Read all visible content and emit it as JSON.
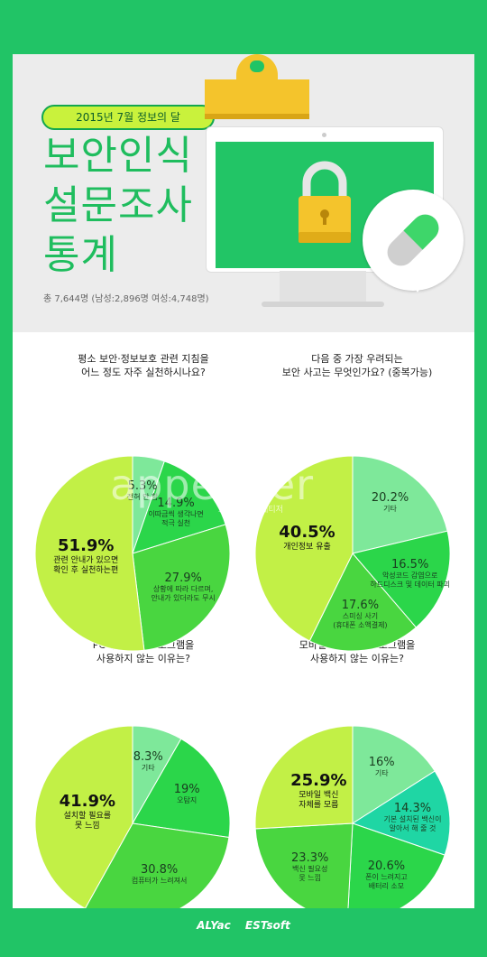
{
  "header": {
    "badge": "2015년 7월 정보의 달",
    "title_line1": "보안인식",
    "title_line2": "설문조사",
    "title_line3": "통계",
    "subtitle": "총 7,644명 (남성:2,896명 여성:4,748명)"
  },
  "watermark": {
    "main": "appetizer",
    "sub": "조선일보 앱 테티저"
  },
  "footer": {
    "brand1": "ALYac",
    "brand2": "ESTsoft"
  },
  "chart_data": [
    {
      "type": "pie",
      "title": "평소 보안·정보보호 관련 지침을 어느 정도 자주 실천하시나요?",
      "title_line1": "평소 보안·정보보호 관련 지침을",
      "title_line2": "어느 정도 자주 실천하시나요?",
      "slices": [
        {
          "value": 5.3,
          "pct": "5.3%",
          "line1": "전혀 안 함",
          "line2": "",
          "color": "#7ee89a"
        },
        {
          "value": 14.9,
          "pct": "14.9%",
          "line1": "이따금씩 생각나면",
          "line2": "적극 실천",
          "color": "#2bd64a"
        },
        {
          "value": 27.9,
          "pct": "27.9%",
          "line1": "상황에 따라 다르며,",
          "line2": "안내가 있더라도 무시",
          "color": "#49d640"
        },
        {
          "value": 51.9,
          "pct": "51.9%",
          "line1": "관련 안내가 있으면",
          "line2": "확인 후 실천하는편",
          "color": "#c2f046"
        }
      ]
    },
    {
      "type": "pie",
      "title": "다음 중 가장 우려되는 보안 사고는 무엇인가요? (중복가능)",
      "title_line1": "다음 중 가장 우려되는",
      "title_line2": "보안 사고는 무엇인가요? (중복가능)",
      "slices": [
        {
          "value": 20.2,
          "pct": "20.2%",
          "line1": "기타",
          "line2": "",
          "color": "#7ee89a"
        },
        {
          "value": 16.5,
          "pct": "16.5%",
          "line1": "악성코드 감염으로",
          "line2": "하드디스크 및 데이터 파괴",
          "color": "#2bd64a"
        },
        {
          "value": 17.6,
          "pct": "17.6%",
          "line1": "스미싱 사기",
          "line2": "(휴대폰 소액결제)",
          "color": "#49d640"
        },
        {
          "value": 40.5,
          "pct": "40.5%",
          "line1": "개인정보 유출",
          "line2": "",
          "color": "#c2f046"
        }
      ]
    },
    {
      "type": "pie",
      "title": "PC에서 백신 프로그램을 사용하지 않는 이유는?",
      "title_line1": "PC에서 백신 프로그램을",
      "title_line2": "사용하지 않는 이유는?",
      "slices": [
        {
          "value": 8.3,
          "pct": "8.3%",
          "line1": "기타",
          "line2": "",
          "color": "#7ee89a"
        },
        {
          "value": 19,
          "pct": "19%",
          "line1": "오탐지",
          "line2": "",
          "color": "#2bd64a"
        },
        {
          "value": 30.8,
          "pct": "30.8%",
          "line1": "컴퓨터가 느려져서",
          "line2": "",
          "color": "#49d640"
        },
        {
          "value": 41.9,
          "pct": "41.9%",
          "line1": "설치할 필요를",
          "line2": "못 느낌",
          "color": "#c2f046"
        }
      ]
    },
    {
      "type": "pie",
      "title": "모바일에서 백신 프로그램을 사용하지 않는 이유는?",
      "title_line1": "모바일에서 백신 프로그램을",
      "title_line2": "사용하지 않는 이유는?",
      "slices": [
        {
          "value": 16,
          "pct": "16%",
          "line1": "기타",
          "line2": "",
          "color": "#7ee89a"
        },
        {
          "value": 14.3,
          "pct": "14.3%",
          "line1": "기본 설치된 백신이",
          "line2": "알아서 해 줄 것",
          "color": "#1fd6a4"
        },
        {
          "value": 20.6,
          "pct": "20.6%",
          "line1": "폰이 느려지고",
          "line2": "배터리 소모",
          "color": "#2bd64a"
        },
        {
          "value": 23.3,
          "pct": "23.3%",
          "line1": "백신 필요성",
          "line2": "못 느낌",
          "color": "#49d640"
        },
        {
          "value": 25.9,
          "pct": "25.9%",
          "line1": "모바일 백신",
          "line2": "자체를 모름",
          "color": "#c2f046"
        }
      ]
    }
  ]
}
